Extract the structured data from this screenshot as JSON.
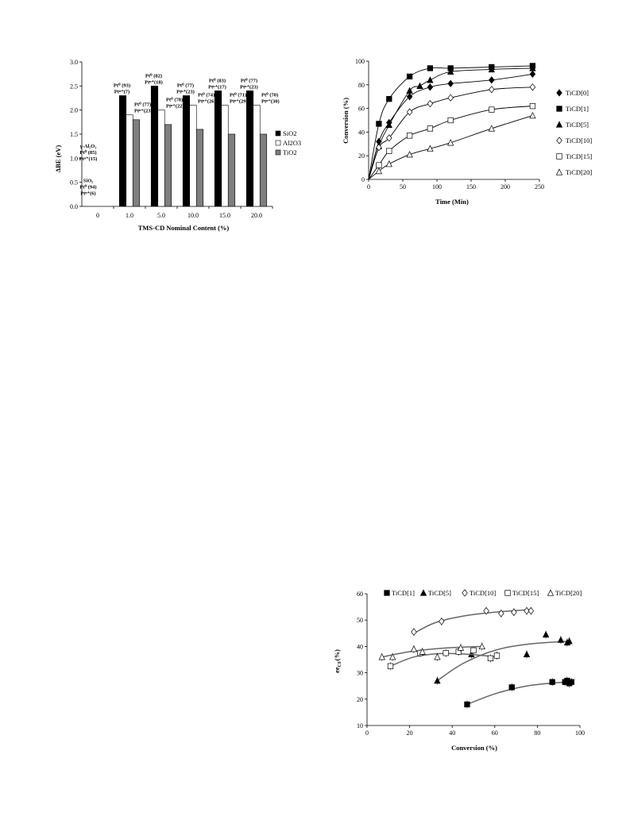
{
  "chart_data": [
    {
      "type": "bar",
      "ylabel": "ΔBE (eV)",
      "xlabel": "TMS-CD Nominal Content (%)",
      "ylim": [
        0,
        3.0
      ],
      "yticks": [
        "0.0",
        "0.5",
        "1.0",
        "1.5",
        "2.0",
        "2.5",
        "3.0"
      ],
      "categories": [
        "0",
        "1.0",
        "5.0",
        "10.0",
        "15.0",
        "20.0"
      ],
      "series": [
        {
          "name": "SiO2",
          "color": "#000000",
          "values": [
            null,
            2.3,
            2.5,
            2.3,
            2.4,
            2.4
          ]
        },
        {
          "name": "Al2O3",
          "color": "#ffffff",
          "values": [
            null,
            1.9,
            2.0,
            2.1,
            2.1,
            2.1
          ]
        },
        {
          "name": "TiO2",
          "color": "#7f7f7f",
          "values": [
            null,
            1.8,
            1.7,
            1.6,
            1.5,
            1.5
          ]
        }
      ],
      "legend_position": "right",
      "annotations": {
        "zero": {
          "al": [
            "γ-Al₂O₃",
            "Pt⁰ (85)",
            "Ptⁿ⁺(15)"
          ],
          "si": [
            "SiO₂",
            "Pt⁰ (94)",
            "Ptⁿ⁺(6)"
          ]
        },
        "sio2": [
          [
            "Pt⁰ (93)",
            "Ptⁿ⁺(7)"
          ],
          [
            "Pt⁰ (82)",
            "Ptⁿ⁺(18)"
          ],
          [
            "Pt⁰ (77)",
            "Ptⁿ⁺(23)"
          ],
          [
            "Pt⁰ (83)",
            "Ptⁿ⁺(17)"
          ],
          [
            "Pt⁰ (77)",
            "Ptⁿ⁺(23)"
          ]
        ],
        "al2o3": [
          [
            "Pt⁰ (77)",
            "Ptⁿ⁺(23)"
          ],
          [
            "Pt⁰ (78)",
            "Ptⁿ⁺(22)"
          ],
          [
            "Pt⁰ (74)",
            "Ptⁿ⁺(26)"
          ],
          [
            "Pt⁰ (71)",
            "Ptⁿ⁺(29)"
          ],
          [
            "Pt⁰ (70)",
            "Ptⁿ⁺(30)"
          ]
        ]
      }
    },
    {
      "type": "line",
      "xlabel": "Time (Min)",
      "ylabel": "Conversion (%)",
      "xlim": [
        0,
        250
      ],
      "ylim": [
        0,
        100
      ],
      "xticks": [
        0,
        50,
        100,
        150,
        200,
        250
      ],
      "yticks": [
        0,
        20,
        40,
        60,
        80,
        100
      ],
      "legend_position": "right",
      "series": [
        {
          "name": "TiCD[0]",
          "marker": "diamond-filled",
          "x": [
            15,
            30,
            60,
            90,
            120,
            180,
            240
          ],
          "y": [
            32,
            48,
            70,
            78,
            81,
            84,
            89
          ]
        },
        {
          "name": "TiCD[1]",
          "marker": "square-filled",
          "x": [
            15,
            30,
            60,
            90,
            120,
            180,
            240
          ],
          "y": [
            47,
            68,
            87,
            94,
            94,
            95,
            96
          ]
        },
        {
          "name": "TiCD[5]",
          "marker": "triangle-filled",
          "x": [
            15,
            30,
            60,
            75,
            90,
            120,
            180,
            240
          ],
          "y": [
            28,
            46,
            75,
            79,
            84,
            91,
            93,
            94
          ]
        },
        {
          "name": "TiCD[10]",
          "marker": "diamond-open",
          "x": [
            15,
            30,
            60,
            90,
            120,
            180,
            240
          ],
          "y": [
            27,
            35,
            57,
            64,
            69,
            76,
            78
          ]
        },
        {
          "name": "TiCD[15]",
          "marker": "square-open",
          "x": [
            15,
            30,
            60,
            90,
            120,
            180,
            240
          ],
          "y": [
            12,
            24,
            37,
            43,
            50,
            59,
            62
          ]
        },
        {
          "name": "TiCD[20]",
          "marker": "triangle-open",
          "x": [
            15,
            30,
            60,
            90,
            120,
            180,
            240
          ],
          "y": [
            7,
            13,
            21,
            26,
            31,
            43,
            54
          ]
        }
      ]
    },
    {
      "type": "scatter",
      "xlabel": "Conversion (%)",
      "ylabel": "ee_CF(%)",
      "ylabel_main": "ee",
      "ylabel_sub": "CF",
      "ylabel_tail": "(%)",
      "xlim": [
        0,
        100
      ],
      "ylim": [
        10,
        60
      ],
      "xticks": [
        0,
        20,
        40,
        60,
        80,
        100
      ],
      "yticks": [
        10,
        20,
        30,
        40,
        50,
        60
      ],
      "legend_position": "top",
      "series": [
        {
          "name": "TiCD[1]",
          "marker": "square-filled",
          "points": [
            [
              47,
              18
            ],
            [
              68,
              24.5
            ],
            [
              87,
              26.5
            ],
            [
              93,
              26.5
            ],
            [
              94,
              27
            ],
            [
              95,
              26
            ],
            [
              96,
              26.5
            ]
          ],
          "fit": [
            [
              47,
              18
            ],
            [
              60,
              22
            ],
            [
              75,
              25
            ],
            [
              90,
              26.3
            ],
            [
              97,
              26.6
            ]
          ]
        },
        {
          "name": "TiCD[5]",
          "marker": "triangle-filled",
          "points": [
            [
              33,
              27
            ],
            [
              49,
              37
            ],
            [
              75,
              37
            ],
            [
              84,
              44.5
            ],
            [
              91,
              42.5
            ],
            [
              94,
              41.5
            ],
            [
              95,
              42
            ]
          ],
          "fit": [
            [
              33,
              27
            ],
            [
              45,
              33.5
            ],
            [
              60,
              38.5
            ],
            [
              75,
              40.8
            ],
            [
              95,
              42
            ]
          ]
        },
        {
          "name": "TiCD[10]",
          "marker": "diamond-open",
          "points": [
            [
              22,
              45.5
            ],
            [
              35,
              49.5
            ],
            [
              56,
              53.5
            ],
            [
              63,
              52.5
            ],
            [
              69,
              53
            ],
            [
              75,
              53.5
            ],
            [
              77,
              53.5
            ]
          ],
          "fit": [
            [
              22,
              45
            ],
            [
              32,
              49
            ],
            [
              45,
              51.5
            ],
            [
              60,
              53
            ],
            [
              77,
              54
            ]
          ]
        },
        {
          "name": "TiCD[15]",
          "marker": "square-open",
          "points": [
            [
              11,
              32.5
            ],
            [
              25,
              37.5
            ],
            [
              37,
              37.5
            ],
            [
              43,
              38
            ],
            [
              50,
              38.5
            ],
            [
              58,
              35.5
            ],
            [
              61,
              36.5
            ]
          ],
          "fit": [
            [
              11,
              32.5
            ],
            [
              22,
              36
            ],
            [
              35,
              37.3
            ],
            [
              48,
              37
            ],
            [
              61,
              36
            ]
          ]
        },
        {
          "name": "TiCD[20]",
          "marker": "triangle-open",
          "points": [
            [
              7,
              36
            ],
            [
              12,
              36
            ],
            [
              22,
              39
            ],
            [
              26,
              38
            ],
            [
              33,
              36
            ],
            [
              44,
              39.5
            ],
            [
              54,
              40
            ]
          ],
          "fit": [
            [
              7,
              36
            ],
            [
              20,
              38
            ],
            [
              35,
              39.3
            ],
            [
              54,
              40
            ]
          ]
        }
      ]
    }
  ]
}
